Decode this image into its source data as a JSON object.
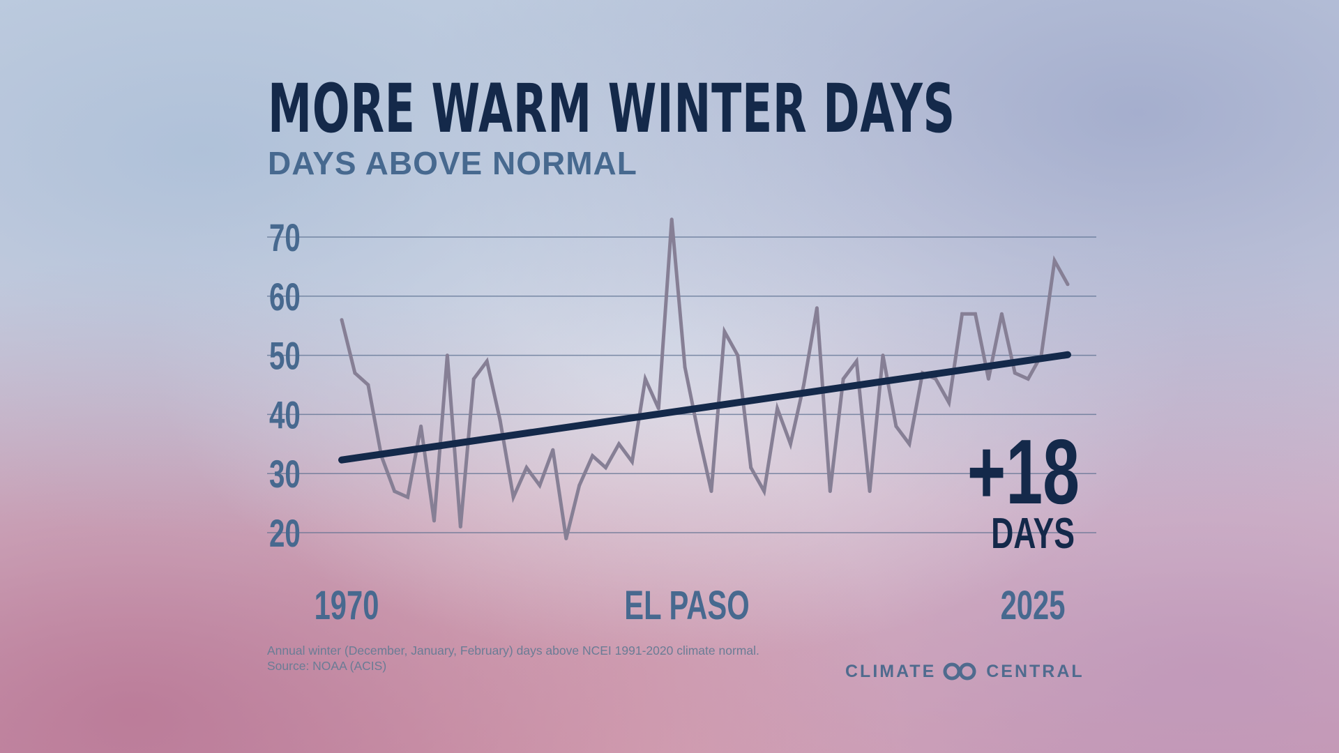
{
  "title": "MORE WARM WINTER DAYS",
  "subtitle": "DAYS ABOVE NORMAL",
  "chart_data": {
    "type": "line",
    "title": "MORE WARM WINTER DAYS",
    "subtitle": "DAYS ABOVE NORMAL",
    "location": "EL PASO",
    "x": [
      1970,
      1971,
      1972,
      1973,
      1974,
      1975,
      1976,
      1977,
      1978,
      1979,
      1980,
      1981,
      1982,
      1983,
      1984,
      1985,
      1986,
      1987,
      1988,
      1989,
      1990,
      1991,
      1992,
      1993,
      1994,
      1995,
      1996,
      1997,
      1998,
      1999,
      2000,
      2001,
      2002,
      2003,
      2004,
      2005,
      2006,
      2007,
      2008,
      2009,
      2010,
      2011,
      2012,
      2013,
      2014,
      2015,
      2016,
      2017,
      2018,
      2019,
      2020,
      2021,
      2022,
      2023,
      2024,
      2025
    ],
    "x_tick_labels": [
      "1970",
      "2025"
    ],
    "series": [
      {
        "values": [
          56,
          47,
          45,
          33,
          27,
          26,
          38,
          22,
          50,
          21,
          46,
          49,
          39,
          26,
          31,
          28,
          34,
          19,
          28,
          33,
          31,
          35,
          32,
          46,
          41,
          73,
          48,
          37,
          27,
          54,
          50,
          31,
          27,
          41,
          35,
          45,
          58,
          27,
          46,
          49,
          27,
          50,
          38,
          35,
          47,
          46,
          42,
          57,
          57,
          46,
          57,
          47,
          46,
          50,
          66,
          62
        ],
        "color": "#867f95"
      }
    ],
    "trend": {
      "start": 32.3,
      "end": 50.1,
      "color": "#14294a"
    },
    "annotation": {
      "value": "+18",
      "unit": "DAYS"
    },
    "y_ticks": [
      "20",
      "30",
      "40",
      "50",
      "60",
      "70"
    ],
    "ylim": [
      20,
      70
    ],
    "grid": true,
    "legend": "none"
  },
  "footnote": {
    "line1": "Annual winter (December, January, February) days above NCEI 1991-2020 climate normal.",
    "line2": "Source: NOAA (ACIS)"
  },
  "logo": {
    "left_text": "CLIMATE",
    "right_text": "CENTRAL",
    "icon": "climate-central-infinity-icon"
  },
  "colors": {
    "title": "#14294a",
    "subtitle": "#47698f",
    "axis_text": "#47698f",
    "data_line": "#867f95",
    "trend_line": "#14294a",
    "grid": "#5b6f8f"
  }
}
